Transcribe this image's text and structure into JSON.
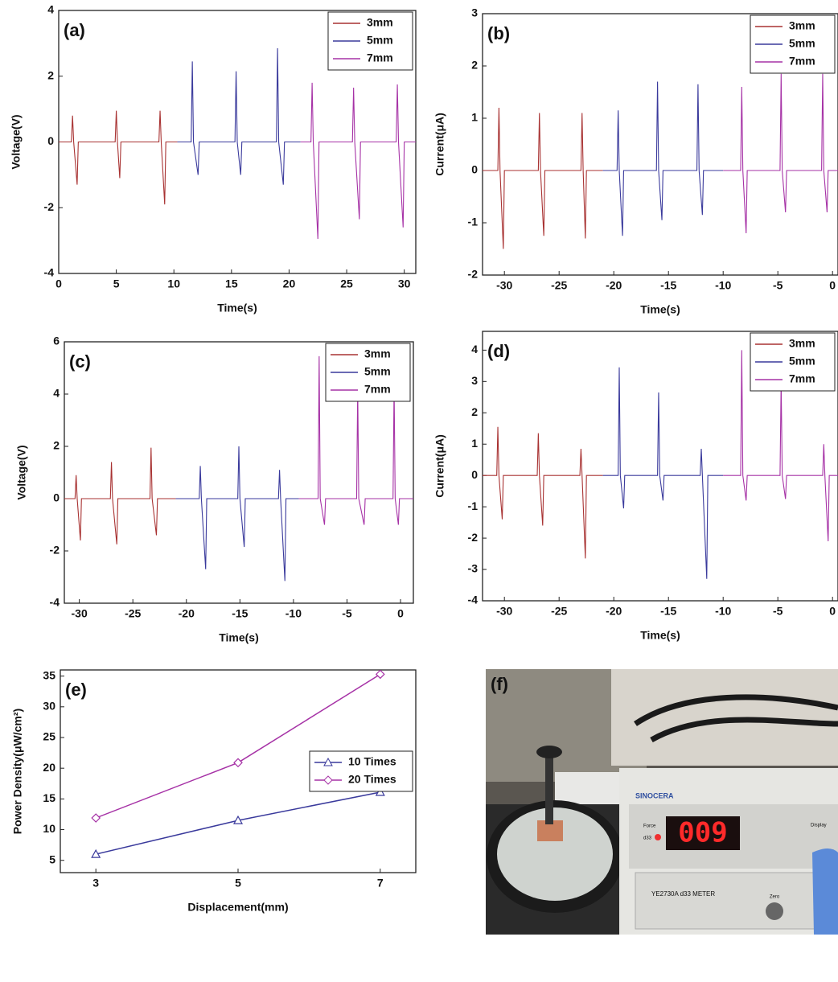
{
  "chart_data": [
    {
      "type": "line",
      "label": "(a)",
      "xlabel": "Time(s)",
      "ylabel": "Voltage(V)",
      "xlim": [
        0,
        31
      ],
      "xticks": [
        0,
        5,
        10,
        15,
        20,
        25,
        30
      ],
      "ylim": [
        -4,
        4
      ],
      "yticks": [
        -4,
        -2,
        0,
        2,
        4
      ],
      "legend": "upper right",
      "series": [
        {
          "name": "3mm",
          "color": "#a83232",
          "x": [
            0,
            1.1,
            1.2,
            1.3,
            1.6,
            1.7,
            4.9,
            5.0,
            5.1,
            5.3,
            5.4,
            8.7,
            8.8,
            8.9,
            9.2,
            9.3,
            10.3
          ],
          "values": [
            0,
            0,
            0.8,
            0,
            -1.3,
            0,
            0,
            0.95,
            0,
            -1.1,
            0,
            0,
            0.95,
            0,
            -1.9,
            0,
            0
          ]
        },
        {
          "name": "5mm",
          "color": "#3a3a9c",
          "x": [
            10.3,
            11.5,
            11.6,
            11.7,
            12.1,
            12.2,
            15.3,
            15.4,
            15.5,
            15.8,
            15.9,
            18.9,
            19.0,
            19.1,
            19.5,
            19.6,
            21
          ],
          "values": [
            0,
            0,
            2.45,
            0,
            -1.0,
            0,
            0,
            2.15,
            0,
            -1.0,
            0,
            0,
            2.85,
            0,
            -1.3,
            0,
            0
          ]
        },
        {
          "name": "7mm",
          "color": "#a632a6",
          "x": [
            21,
            21.9,
            22.0,
            22.1,
            22.5,
            22.6,
            25.5,
            25.6,
            25.7,
            26.1,
            26.2,
            29.3,
            29.4,
            29.5,
            29.9,
            30.0,
            31
          ],
          "values": [
            0,
            0,
            1.8,
            0,
            -2.95,
            0,
            0,
            1.65,
            0,
            -2.35,
            0,
            0,
            1.75,
            0,
            -2.6,
            0,
            0
          ]
        }
      ]
    },
    {
      "type": "line",
      "label": "(b)",
      "xlabel": "Time(s)",
      "ylabel": "Current(μA)",
      "xlim": [
        -32,
        0.5
      ],
      "xticks": [
        -30,
        -25,
        -20,
        -15,
        -10,
        -5,
        0
      ],
      "ylim": [
        -2,
        3
      ],
      "yticks": [
        -2,
        -1,
        0,
        1,
        2,
        3
      ],
      "legend": "upper right",
      "series": [
        {
          "name": "3mm",
          "color": "#a83232",
          "x": [
            -32,
            -30.6,
            -30.5,
            -30.4,
            -30.1,
            -30.0,
            -26.9,
            -26.8,
            -26.7,
            -26.4,
            -26.3,
            -23.0,
            -22.9,
            -22.8,
            -22.6,
            -22.5,
            -21
          ],
          "values": [
            0,
            0,
            1.2,
            0,
            -1.5,
            0,
            0,
            1.1,
            0,
            -1.25,
            0,
            0,
            1.1,
            0,
            -1.3,
            0,
            0
          ]
        },
        {
          "name": "5mm",
          "color": "#3a3a9c",
          "x": [
            -21,
            -19.7,
            -19.6,
            -19.5,
            -19.2,
            -19.1,
            -16.1,
            -16.0,
            -15.9,
            -15.6,
            -15.5,
            -12.4,
            -12.3,
            -12.2,
            -11.9,
            -11.8,
            -10
          ],
          "values": [
            0,
            0,
            1.15,
            0,
            -1.25,
            0,
            0,
            1.7,
            0,
            -0.95,
            0,
            0,
            1.65,
            0,
            -0.85,
            0,
            0
          ]
        },
        {
          "name": "7mm",
          "color": "#a632a6",
          "x": [
            -10,
            -8.4,
            -8.3,
            -8.2,
            -7.9,
            -7.8,
            -4.8,
            -4.7,
            -4.6,
            -4.3,
            -4.2,
            -1.0,
            -0.9,
            -0.8,
            -0.5,
            -0.4,
            0.5
          ],
          "values": [
            0,
            0,
            1.6,
            0,
            -1.2,
            0,
            0,
            1.85,
            0,
            -0.8,
            0,
            0,
            1.85,
            0,
            -0.8,
            0,
            0
          ]
        }
      ]
    },
    {
      "type": "line",
      "label": "(c)",
      "xlabel": "Time(s)",
      "ylabel": "Voltage(V)",
      "xlim": [
        -31.4,
        1.2
      ],
      "xticks": [
        -30,
        -25,
        -20,
        -15,
        -10,
        -5,
        0
      ],
      "ylim": [
        -4,
        6
      ],
      "yticks": [
        -4,
        -2,
        0,
        2,
        4,
        6
      ],
      "legend": "upper right",
      "series": [
        {
          "name": "3mm",
          "color": "#a83232",
          "x": [
            -31.4,
            -30.4,
            -30.3,
            -30.2,
            -29.9,
            -29.8,
            -27.1,
            -27.0,
            -26.9,
            -26.5,
            -26.4,
            -23.4,
            -23.3,
            -23.2,
            -22.8,
            -22.7,
            -21
          ],
          "values": [
            0,
            0,
            0.9,
            0,
            -1.6,
            0,
            0,
            1.4,
            0,
            -1.75,
            0,
            0,
            1.95,
            0,
            -1.4,
            0,
            0
          ]
        },
        {
          "name": "5mm",
          "color": "#3a3a9c",
          "x": [
            -21,
            -18.8,
            -18.7,
            -18.6,
            -18.2,
            -18.1,
            -15.2,
            -15.1,
            -15.0,
            -14.6,
            -14.5,
            -11.4,
            -11.3,
            -11.2,
            -10.8,
            -10.7,
            -9.5
          ],
          "values": [
            0,
            0,
            1.25,
            0,
            -2.7,
            0,
            0,
            2.0,
            0,
            -1.85,
            0,
            0,
            1.1,
            0,
            -3.15,
            0,
            0
          ]
        },
        {
          "name": "7mm",
          "color": "#a632a6",
          "x": [
            -9.5,
            -7.7,
            -7.6,
            -7.5,
            -7.1,
            -7.0,
            -4.1,
            -4.0,
            -3.9,
            -3.4,
            -3.3,
            -0.7,
            -0.6,
            -0.5,
            -0.2,
            -0.1,
            1.2
          ],
          "values": [
            0,
            0,
            5.45,
            0,
            -1.0,
            0,
            0,
            4.2,
            0,
            -1.0,
            0,
            0,
            4.3,
            0,
            -1.0,
            0,
            0
          ]
        }
      ]
    },
    {
      "type": "line",
      "label": "(d)",
      "xlabel": "Time(s)",
      "ylabel": "Current(μA)",
      "xlim": [
        -32,
        0.5
      ],
      "xticks": [
        -30,
        -25,
        -20,
        -15,
        -10,
        -5,
        0
      ],
      "ylim": [
        -4,
        4.6
      ],
      "yticks": [
        -4,
        -3,
        -2,
        -1,
        0,
        1,
        2,
        3,
        4
      ],
      "legend": "upper right",
      "series": [
        {
          "name": "3mm",
          "color": "#a83232",
          "x": [
            -32,
            -30.7,
            -30.6,
            -30.5,
            -30.2,
            -30.1,
            -27.0,
            -26.9,
            -26.8,
            -26.5,
            -26.4,
            -23.1,
            -23.0,
            -22.9,
            -22.6,
            -22.5,
            -21
          ],
          "values": [
            0,
            0,
            1.55,
            0,
            -1.4,
            0,
            0,
            1.35,
            0,
            -1.6,
            0,
            0,
            0.85,
            0,
            -2.65,
            0,
            0
          ]
        },
        {
          "name": "5mm",
          "color": "#3a3a9c",
          "x": [
            -21,
            -19.6,
            -19.5,
            -19.4,
            -19.1,
            -19.0,
            -16.0,
            -15.9,
            -15.8,
            -15.5,
            -15.4,
            -12.1,
            -12.0,
            -11.9,
            -11.5,
            -11.4,
            -10
          ],
          "values": [
            0,
            0,
            3.45,
            0,
            -1.05,
            0,
            0,
            2.65,
            0,
            -0.8,
            0,
            0,
            0.85,
            0,
            -3.3,
            0,
            0
          ]
        },
        {
          "name": "7mm",
          "color": "#a632a6",
          "x": [
            -10,
            -8.4,
            -8.3,
            -8.2,
            -7.9,
            -7.8,
            -4.8,
            -4.7,
            -4.6,
            -4.3,
            -4.2,
            -0.9,
            -0.8,
            -0.7,
            -0.4,
            -0.3,
            0.5
          ],
          "values": [
            0,
            0,
            4.0,
            0,
            -0.8,
            0,
            0,
            3.0,
            0,
            -0.75,
            0,
            0,
            1.0,
            0,
            -2.1,
            0,
            0
          ]
        }
      ]
    },
    {
      "type": "line",
      "label": "(e)",
      "xlabel": "Displacement(mm)",
      "ylabel": "Power Density(μW/cm²)",
      "x": [
        3,
        5,
        7
      ],
      "xlim": [
        2.5,
        7.5
      ],
      "xticks": [
        3,
        5,
        7
      ],
      "ylim": [
        3,
        36
      ],
      "yticks": [
        5,
        10,
        15,
        20,
        25,
        30,
        35
      ],
      "legend": "center right",
      "series": [
        {
          "name": "10 Times",
          "color": "#3a3a9c",
          "marker": "triangle",
          "values": [
            6.0,
            11.5,
            16.1
          ]
        },
        {
          "name": "20 Times",
          "color": "#a632a6",
          "marker": "diamond",
          "values": [
            11.9,
            20.9,
            35.3
          ]
        }
      ]
    }
  ],
  "photo": {
    "label": "(f)",
    "brand": "SINOCERA",
    "display": "009",
    "model": "YE2730A d33 METER",
    "force": "Force",
    "d33": "d33",
    "button": "Display",
    "zero": "Zero"
  }
}
